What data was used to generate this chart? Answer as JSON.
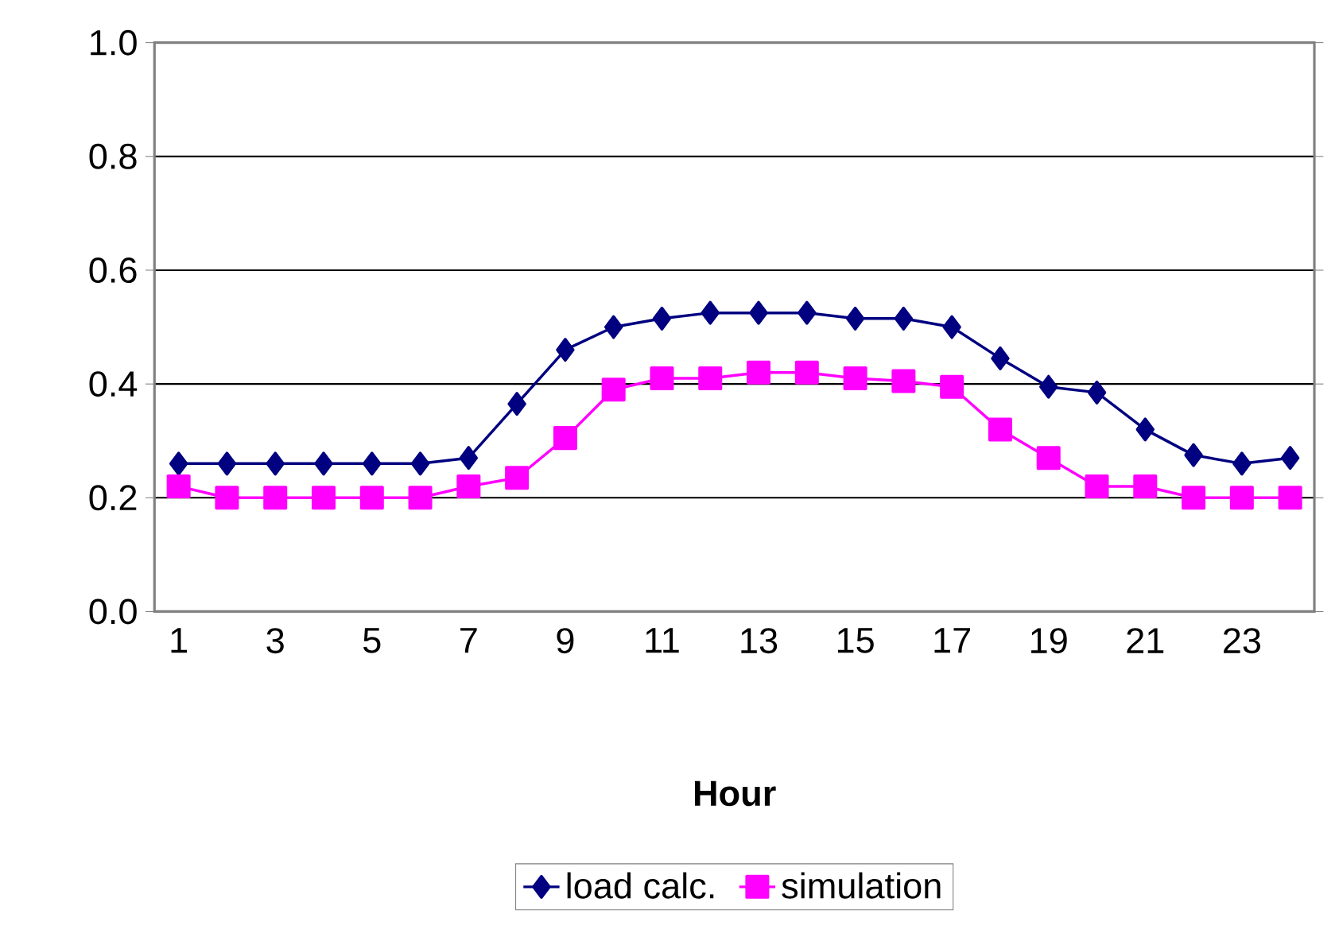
{
  "chart_data": {
    "type": "line",
    "xlabel": "Hour",
    "categories": [
      "1",
      null,
      "3",
      null,
      "5",
      null,
      "7",
      null,
      "9",
      null,
      "11",
      null,
      "13",
      null,
      "15",
      null,
      "17",
      null,
      "19",
      null,
      "21",
      null,
      "23",
      null
    ],
    "series": [
      {
        "name": "load calc.",
        "color": "#000080",
        "marker": "diamond",
        "values": [
          0.26,
          0.26,
          0.26,
          0.26,
          0.26,
          0.26,
          0.27,
          0.365,
          0.46,
          0.5,
          0.515,
          0.525,
          0.525,
          0.525,
          0.515,
          0.515,
          0.5,
          0.445,
          0.395,
          0.385,
          0.32,
          0.275,
          0.26,
          0.27
        ]
      },
      {
        "name": "simulation",
        "color": "#ff00ff",
        "marker": "square",
        "values": [
          0.22,
          0.2,
          0.2,
          0.2,
          0.2,
          0.2,
          0.22,
          0.235,
          0.305,
          0.39,
          0.41,
          0.41,
          0.42,
          0.42,
          0.41,
          0.405,
          0.395,
          0.32,
          0.27,
          0.22,
          0.22,
          0.2,
          0.2,
          0.2
        ]
      }
    ],
    "ylim": [
      0,
      1
    ],
    "yticks": [
      {
        "value": 0,
        "label": "0.0"
      },
      {
        "value": 0.2,
        "label": "0.2"
      },
      {
        "value": 0.4,
        "label": "0.4"
      },
      {
        "value": 0.6,
        "label": "0.6"
      },
      {
        "value": 0.8,
        "label": "0.8"
      },
      {
        "value": 1,
        "label": "1.0"
      }
    ],
    "grid": "y",
    "legend": "bottom",
    "line_style": "solid"
  }
}
